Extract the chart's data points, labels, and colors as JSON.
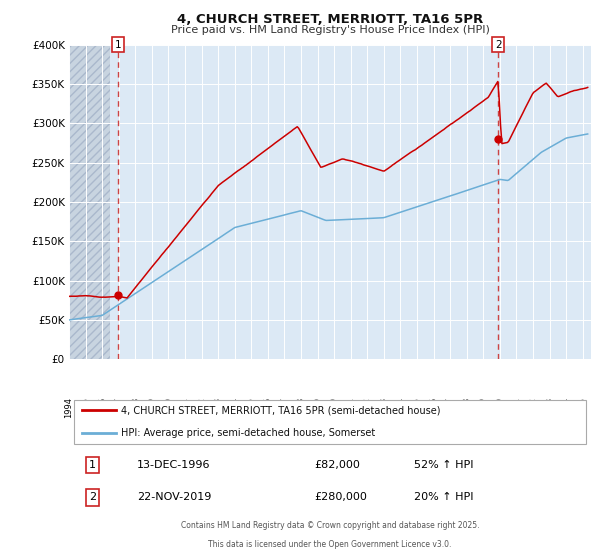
{
  "title": "4, CHURCH STREET, MERRIOTT, TA16 5PR",
  "subtitle": "Price paid vs. HM Land Registry's House Price Index (HPI)",
  "legend_line1": "4, CHURCH STREET, MERRIOTT, TA16 5PR (semi-detached house)",
  "legend_line2": "HPI: Average price, semi-detached house, Somerset",
  "annotation1_date": "13-DEC-1996",
  "annotation1_price": "£82,000",
  "annotation1_hpi": "52% ↑ HPI",
  "annotation2_date": "22-NOV-2019",
  "annotation2_price": "£280,000",
  "annotation2_hpi": "20% ↑ HPI",
  "footer1": "Contains HM Land Registry data © Crown copyright and database right 2025.",
  "footer2": "This data is licensed under the Open Government Licence v3.0.",
  "xmin": 1994.0,
  "xmax": 2025.5,
  "ymin": 0,
  "ymax": 400000,
  "red_color": "#cc0000",
  "blue_color": "#6baed6",
  "dashed_color": "#cc4444",
  "bg_color": "#dce9f5",
  "hatch_bg_color": "#c8d4e0",
  "grid_color": "#ffffff",
  "marker1_x": 1996.96,
  "marker1_y": 82000,
  "marker2_x": 2019.9,
  "marker2_y": 280000,
  "hatch_end": 1996.5,
  "yticks": [
    0,
    50000,
    100000,
    150000,
    200000,
    250000,
    300000,
    350000,
    400000
  ]
}
